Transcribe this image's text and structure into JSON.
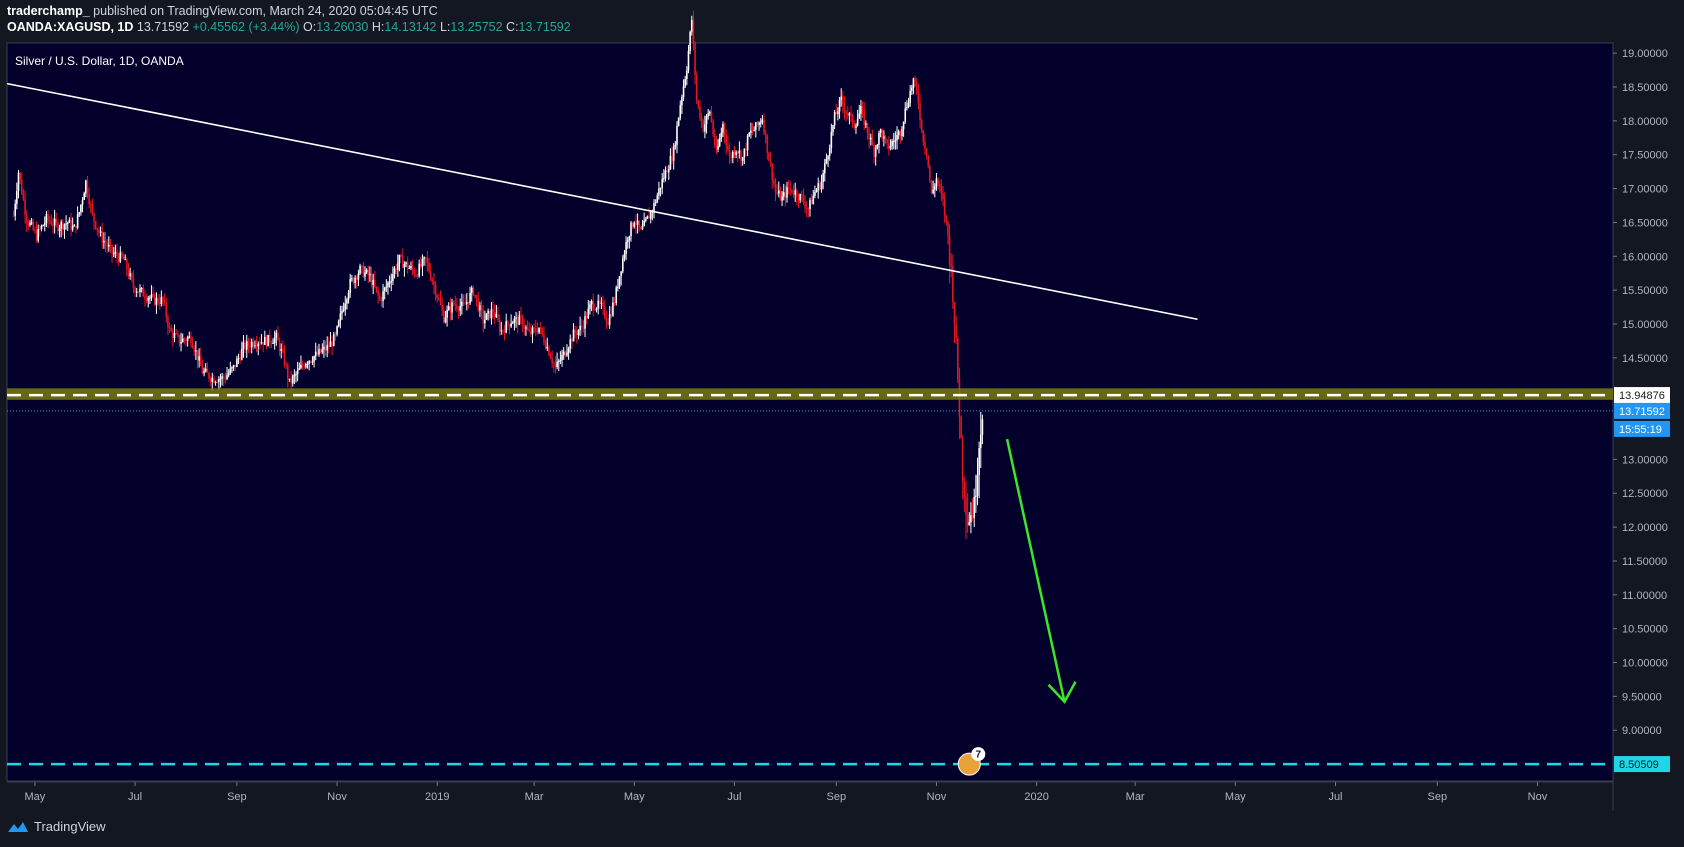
{
  "header": {
    "author": "traderchamp_",
    "published_text": "published on TradingView.com, March 24, 2020 05:04:45 UTC",
    "symbol": "OANDA:XAGUSD, 1D",
    "last": "13.71592",
    "change": "+0.45562 (+3.44%)",
    "open_label": "O:",
    "open": "13.26030",
    "high_label": "H:",
    "high": "14.13142",
    "low_label": "L:",
    "low": "13.25752",
    "close_label": "C:",
    "close": "13.71592"
  },
  "footer": {
    "brand": "TradingView",
    "icon": "tradingview-logo-icon"
  },
  "colors": {
    "background": "#131722",
    "chart_bg": "#03012b",
    "up": "#ffffff",
    "down": "#e6161e",
    "trendline": "#ffffff",
    "zone": "#7a7a10",
    "arrow": "#3ce628",
    "support": "#1fd6e6",
    "price_badge": "#2196f3"
  },
  "events_badge": {
    "count": "7"
  },
  "chart_data": {
    "type": "candlestick",
    "title": "Silver / U.S. Dollar, 1D, OANDA",
    "ylim": [
      8.25,
      19.15
    ],
    "y_ticks": [
      "19.00000",
      "18.50000",
      "18.00000",
      "17.50000",
      "17.00000",
      "16.50000",
      "16.00000",
      "15.50000",
      "15.00000",
      "14.50000",
      "13.00000",
      "12.50000",
      "12.00000",
      "11.50000",
      "11.00000",
      "10.50000",
      "10.00000",
      "9.50000",
      "9.00000"
    ],
    "x_ticks": [
      {
        "label": "May",
        "t": 13
      },
      {
        "label": "Jul",
        "t": 74
      },
      {
        "label": "Sep",
        "t": 136
      },
      {
        "label": "Nov",
        "t": 197
      },
      {
        "label": "2019",
        "t": 258
      },
      {
        "label": "Mar",
        "t": 317
      },
      {
        "label": "May",
        "t": 378
      },
      {
        "label": "Jul",
        "t": 439
      },
      {
        "label": "Sep",
        "t": 501
      },
      {
        "label": "Nov",
        "t": 562
      },
      {
        "label": "2020",
        "t": 623
      },
      {
        "label": "Mar",
        "t": 683
      },
      {
        "label": "May",
        "t": 744
      },
      {
        "label": "Jul",
        "t": 805
      },
      {
        "label": "Sep",
        "t": 867
      },
      {
        "label": "Nov",
        "t": 928
      }
    ],
    "x_range": [
      -4,
      974
    ],
    "price_path": [
      [
        0,
        16.6
      ],
      [
        3,
        17.25
      ],
      [
        8,
        16.55
      ],
      [
        14,
        16.3
      ],
      [
        20,
        16.55
      ],
      [
        27,
        16.45
      ],
      [
        33,
        16.5
      ],
      [
        37,
        16.4
      ],
      [
        40,
        16.65
      ],
      [
        44,
        17.1
      ],
      [
        48,
        16.6
      ],
      [
        53,
        16.3
      ],
      [
        60,
        16.05
      ],
      [
        67,
        15.95
      ],
      [
        73,
        15.55
      ],
      [
        79,
        15.45
      ],
      [
        86,
        15.35
      ],
      [
        91,
        15.35
      ],
      [
        95,
        14.9
      ],
      [
        101,
        14.75
      ],
      [
        108,
        14.8
      ],
      [
        115,
        14.3
      ],
      [
        121,
        14.2
      ],
      [
        128,
        14.2
      ],
      [
        134,
        14.35
      ],
      [
        140,
        14.65
      ],
      [
        147,
        14.75
      ],
      [
        154,
        14.75
      ],
      [
        160,
        14.8
      ],
      [
        165,
        14.45
      ],
      [
        168,
        14.12
      ],
      [
        172,
        14.25
      ],
      [
        178,
        14.45
      ],
      [
        185,
        14.55
      ],
      [
        191,
        14.65
      ],
      [
        196,
        14.8
      ],
      [
        200,
        15.2
      ],
      [
        205,
        15.6
      ],
      [
        211,
        15.8
      ],
      [
        217,
        15.7
      ],
      [
        223,
        15.35
      ],
      [
        229,
        15.65
      ],
      [
        235,
        15.95
      ],
      [
        240,
        15.85
      ],
      [
        245,
        15.75
      ],
      [
        251,
        15.95
      ],
      [
        257,
        15.5
      ],
      [
        262,
        15.1
      ],
      [
        268,
        15.3
      ],
      [
        274,
        15.25
      ],
      [
        280,
        15.5
      ],
      [
        286,
        15.05
      ],
      [
        292,
        15.2
      ],
      [
        297,
        14.9
      ],
      [
        303,
        15.05
      ],
      [
        309,
        15.05
      ],
      [
        314,
        14.85
      ],
      [
        320,
        14.95
      ],
      [
        326,
        14.6
      ],
      [
        330,
        14.35
      ],
      [
        335,
        14.55
      ],
      [
        341,
        14.85
      ],
      [
        346,
        14.95
      ],
      [
        352,
        15.3
      ],
      [
        358,
        15.25
      ],
      [
        362,
        15.05
      ],
      [
        366,
        15.35
      ],
      [
        370,
        15.85
      ],
      [
        374,
        16.3
      ],
      [
        378,
        16.55
      ],
      [
        382,
        16.35
      ],
      [
        386,
        16.55
      ],
      [
        390,
        16.75
      ],
      [
        394,
        17.05
      ],
      [
        398,
        17.3
      ],
      [
        402,
        17.55
      ],
      [
        406,
        18.25
      ],
      [
        410,
        18.8
      ],
      [
        413,
        19.5
      ],
      [
        416,
        18.3
      ],
      [
        420,
        17.9
      ],
      [
        424,
        18.15
      ],
      [
        428,
        17.5
      ],
      [
        432,
        17.95
      ],
      [
        436,
        17.45
      ],
      [
        440,
        17.6
      ],
      [
        444,
        17.45
      ],
      [
        448,
        17.8
      ],
      [
        452,
        17.9
      ],
      [
        456,
        18.05
      ],
      [
        460,
        17.45
      ],
      [
        464,
        16.95
      ],
      [
        468,
        16.85
      ],
      [
        472,
        17.0
      ],
      [
        476,
        16.95
      ],
      [
        480,
        16.85
      ],
      [
        484,
        16.7
      ],
      [
        488,
        16.95
      ],
      [
        492,
        17.1
      ],
      [
        496,
        17.55
      ],
      [
        500,
        18.05
      ],
      [
        504,
        18.3
      ],
      [
        508,
        18.1
      ],
      [
        512,
        17.95
      ],
      [
        516,
        18.15
      ],
      [
        520,
        17.85
      ],
      [
        524,
        17.55
      ],
      [
        528,
        17.85
      ],
      [
        532,
        17.6
      ],
      [
        536,
        17.7
      ],
      [
        540,
        17.85
      ],
      [
        544,
        18.25
      ],
      [
        548,
        18.6
      ],
      [
        551,
        18.3
      ],
      [
        553,
        17.85
      ],
      [
        556,
        17.55
      ],
      [
        559,
        16.9
      ],
      [
        562,
        17.15
      ],
      [
        566,
        16.8
      ],
      [
        569,
        16.3
      ],
      [
        572,
        15.5
      ],
      [
        575,
        14.2
      ],
      [
        578,
        12.8
      ],
      [
        581,
        12.1
      ],
      [
        585,
        12.3
      ],
      [
        588,
        13.25
      ],
      [
        590,
        13.72
      ]
    ],
    "trendline": [
      [
        -4,
        18.55
      ],
      [
        721,
        15.07
      ]
    ],
    "zone": [
      13.88,
      14.05
    ],
    "dashed_level": 13.95,
    "support_level": 8.5,
    "last_price_level": 13.716,
    "arrow": [
      [
        605,
        13.3
      ],
      [
        640,
        9.42
      ]
    ],
    "price_labels": {
      "level": "13.94876",
      "last": "13.71592",
      "countdown": "15:55:19",
      "support": "8.50509"
    }
  }
}
